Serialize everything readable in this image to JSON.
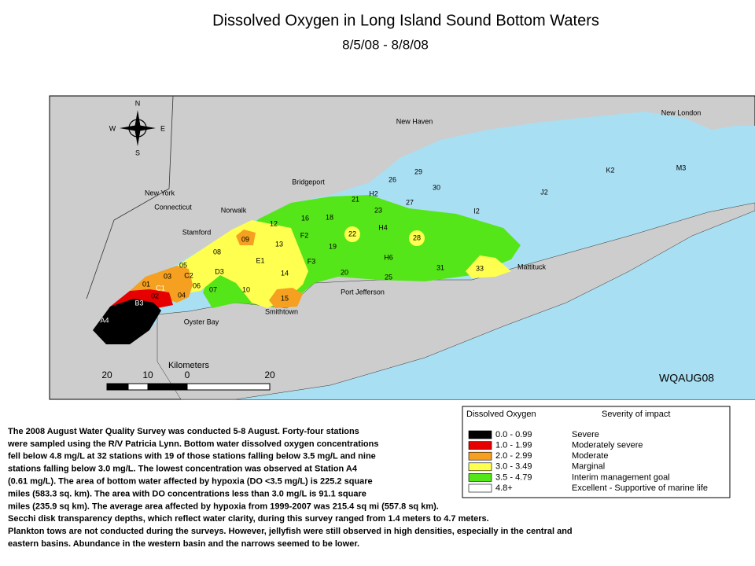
{
  "header": {
    "title": "Dissolved Oxygen in Long Island Sound Bottom Waters",
    "subtitle": "8/5/08 - 8/8/08"
  },
  "map": {
    "places": [
      "New Haven",
      "New London",
      "Bridgeport",
      "Norwalk",
      "Stamford",
      "New York",
      "Connecticut",
      "Port Jefferson",
      "Smithtown",
      "Oyster Bay",
      "Mattituck"
    ],
    "compass": [
      "N",
      "E",
      "S",
      "W"
    ],
    "stations": [
      "A4",
      "B3",
      "C1",
      "01",
      "02",
      "03",
      "04",
      "05",
      "C2",
      "06",
      "07",
      "D3",
      "08",
      "09",
      "10",
      "E1",
      "12",
      "13",
      "14",
      "15",
      "16",
      "F2",
      "18",
      "19",
      "F3",
      "20",
      "21",
      "H2",
      "22",
      "23",
      "H4",
      "25",
      "26",
      "27",
      "28",
      "29",
      "H6",
      "30",
      "31",
      "I2",
      "33",
      "J2",
      "K2",
      "M3"
    ],
    "scale": {
      "title": "Kilometers",
      "ticks": [
        "20",
        "10",
        "0",
        "20"
      ]
    },
    "code": "WQAUG08"
  },
  "legend": {
    "title": "Dissolved Oxygen",
    "subtitle": "Severity of impact",
    "items": [
      {
        "range": "0.0 - 0.99",
        "severity": "Severe",
        "color": "#000000"
      },
      {
        "range": "1.0 - 1.99",
        "severity": "Moderately severe",
        "color": "#e60000"
      },
      {
        "range": "2.0 - 2.99",
        "severity": "Moderate",
        "color": "#f5a020"
      },
      {
        "range": "3.0 - 3.49",
        "severity": "Marginal",
        "color": "#ffff50"
      },
      {
        "range": "3.5 - 4.79",
        "severity": "Interim management goal",
        "color": "#55e619"
      },
      {
        "range": "4.8+",
        "severity": "Excellent - Supportive of marine life",
        "color": "#ffffff"
      }
    ]
  },
  "description": [
    "The 2008 August Water Quality Survey was conducted 5-8 August. Forty-four stations",
    "were sampled using the R/V Patricia Lynn.  Bottom water dissolved oxygen concentrations",
    "fell below 4.8 mg/L at 32 stations with 19 of those stations falling below 3.5 mg/L and nine",
    "stations falling below 3.0 mg/L. The lowest concentration  was observed at Station A4",
    "(0.61 mg/L). The area of bottom water affected  by hypoxia (DO <3.5 mg/L) is 225.2 square",
    "miles (583.3 sq. km). The area with DO concentrations  less than 3.0 mg/L is 91.1 square",
    "miles (235.9 sq km). The average area affected by hypoxia from 1999-2007  was 215.4 sq mi (557.8 sq km).",
    "Secchi disk transparency  depths, which reflect water clarity, during this survey ranged from 1.4 meters to 4.7 meters.",
    "Plankton tows are not conducted  during the surveys. However, jellyfish were still observed in high densities, especially in the central and",
    "eastern basins. Abundance in the western basin and the narrows seemed to be lower."
  ]
}
